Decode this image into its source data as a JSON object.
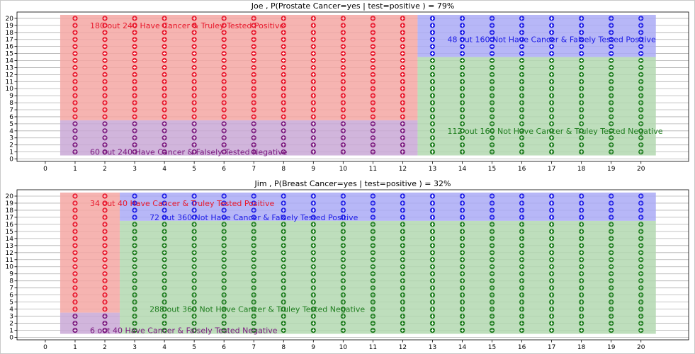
{
  "chart_data": [
    {
      "type": "scatter",
      "title": "Joe , P(Prostate Cancer=yes | test=positive ) = 79%",
      "xlim": [
        -0.95,
        21.6
      ],
      "ylim": [
        -0.35,
        20.9
      ],
      "x_ticks": [
        0,
        1,
        2,
        3,
        4,
        5,
        6,
        7,
        8,
        9,
        10,
        11,
        12,
        13,
        14,
        15,
        16,
        17,
        18,
        19,
        20
      ],
      "y_ticks": [
        0,
        1,
        2,
        3,
        4,
        5,
        6,
        7,
        8,
        9,
        10,
        11,
        12,
        13,
        14,
        15,
        16,
        17,
        18,
        19,
        20
      ],
      "grid": "horizontal",
      "regions": [
        {
          "x": [
            0.5,
            12.5
          ],
          "y": [
            5.5,
            20.5
          ],
          "color": "#f4a7a3",
          "point_color": "#e8192c",
          "label": "180 out 240 Have Cancer & Truley Tested Positive",
          "label_color": "#e8192c",
          "label_at": [
            1.5,
            19
          ]
        },
        {
          "x": [
            0.5,
            12.5
          ],
          "y": [
            0.5,
            5.5
          ],
          "color": "#c9a8d6",
          "point_color": "#7b1a80",
          "label": "60 out 240 Have Cancer & Falsely Tested Negative",
          "label_color": "#7b1a80",
          "label_at": [
            1.5,
            1
          ]
        },
        {
          "x": [
            12.5,
            20.5
          ],
          "y": [
            14.5,
            20.5
          ],
          "color": "#aaaaf6",
          "point_color": "#1c1ce6",
          "label": "48 out 160 Not Have Cancer & Falsely Tested Positive",
          "label_color": "#1c1ce6",
          "label_at": [
            13.5,
            17
          ]
        },
        {
          "x": [
            12.5,
            20.5
          ],
          "y": [
            0.5,
            14.5
          ],
          "color": "#b3d8b0",
          "point_color": "#1e7d1e",
          "label": "112 out 160 Not Have Cancer & Truley Tested Negative",
          "label_color": "#1e7d1e",
          "label_at": [
            13.5,
            4
          ]
        }
      ],
      "points": [
        {
          "x_range": [
            1,
            12
          ],
          "y_range": [
            6,
            20
          ],
          "color": "#e8192c"
        },
        {
          "x_range": [
            1,
            12
          ],
          "y_range": [
            1,
            5
          ],
          "color": "#7b1a80"
        },
        {
          "x_range": [
            13,
            20
          ],
          "y_range": [
            15,
            20
          ],
          "color": "#1c1ce6"
        },
        {
          "x_range": [
            13,
            20
          ],
          "y_range": [
            1,
            14
          ],
          "color": "#1e7d1e"
        }
      ]
    },
    {
      "type": "scatter",
      "title": "Jim , P(Breast Cancer=yes | test=positive ) = 32%",
      "xlim": [
        -0.95,
        21.6
      ],
      "ylim": [
        -0.35,
        20.9
      ],
      "x_ticks": [
        0,
        1,
        2,
        3,
        4,
        5,
        6,
        7,
        8,
        9,
        10,
        11,
        12,
        13,
        14,
        15,
        16,
        17,
        18,
        19,
        20
      ],
      "y_ticks": [
        0,
        1,
        2,
        3,
        4,
        5,
        6,
        7,
        8,
        9,
        10,
        11,
        12,
        13,
        14,
        15,
        16,
        17,
        18,
        19,
        20
      ],
      "grid": "horizontal",
      "regions": [
        {
          "x": [
            0.5,
            2.5
          ],
          "y": [
            3.5,
            20.5
          ],
          "color": "#f4a7a3",
          "point_color": "#e8192c",
          "label": "34 out 40 Have Cancer & Truley Tested Positive",
          "label_color": "#e8192c",
          "label_at": [
            1.5,
            19
          ]
        },
        {
          "x": [
            0.5,
            2.5
          ],
          "y": [
            0.5,
            3.5
          ],
          "color": "#c9a8d6",
          "point_color": "#7b1a80",
          "label": "6 out 40 Have Cancer & Falsely Tested Negative",
          "label_color": "#7b1a80",
          "label_at": [
            1.5,
            1
          ]
        },
        {
          "x": [
            2.5,
            20.5
          ],
          "y": [
            16.5,
            20.5
          ],
          "color": "#aaaaf6",
          "point_color": "#1c1ce6",
          "label": "72 out 360 Not Have Cancer & Falsely Tested Positive",
          "label_color": "#1c1ce6",
          "label_at": [
            3.5,
            17
          ]
        },
        {
          "x": [
            2.5,
            20.5
          ],
          "y": [
            0.5,
            16.5
          ],
          "color": "#b3d8b0",
          "point_color": "#1e7d1e",
          "label": "288 out 360 Not Have Cancer & Truley Tested Negative",
          "label_color": "#1e7d1e",
          "label_at": [
            3.5,
            4
          ]
        }
      ],
      "points": [
        {
          "x_range": [
            1,
            2
          ],
          "y_range": [
            4,
            20
          ],
          "color": "#e8192c"
        },
        {
          "x_range": [
            1,
            2
          ],
          "y_range": [
            1,
            3
          ],
          "color": "#7b1a80"
        },
        {
          "x_range": [
            3,
            20
          ],
          "y_range": [
            17,
            20
          ],
          "color": "#1c1ce6"
        },
        {
          "x_range": [
            3,
            20
          ],
          "y_range": [
            1,
            16
          ],
          "color": "#1e7d1e"
        }
      ]
    }
  ]
}
